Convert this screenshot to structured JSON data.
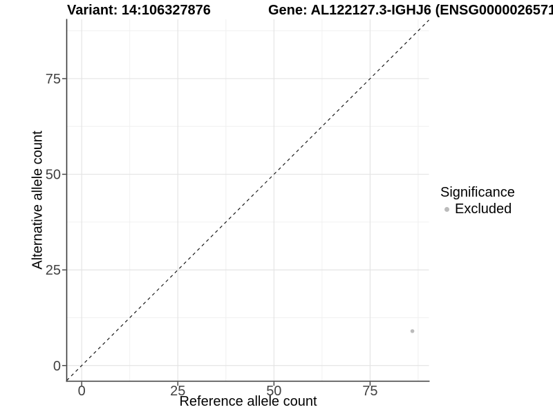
{
  "figure": {
    "title_variant": "Variant: 14:106327876",
    "title_gene": "Gene: AL122127.3-IGHJ6 (ENSG0000026571",
    "background": "#ffffff"
  },
  "chart_data": {
    "type": "scatter",
    "title": "Variant: 14:106327876   Gene: AL122127.3-IGHJ6 (ENSG0000026571",
    "xlabel": "Reference allele count",
    "ylabel": "Alternative allele count",
    "x_ticks": [
      0,
      25,
      50,
      75
    ],
    "y_ticks": [
      0,
      25,
      50,
      75
    ],
    "xlim": [
      -3.9,
      90.3
    ],
    "ylim": [
      -4.1,
      90.5
    ],
    "minor_tick_values": [
      12.5,
      37.5,
      62.5,
      87.5
    ],
    "grid": "major+minor",
    "identity_line": {
      "type": "abline",
      "slope": 1,
      "intercept": 0,
      "style": "dashed",
      "color": "#1a1a1a"
    },
    "series": [
      {
        "name": "Excluded",
        "color": "#bbbbbb",
        "points": [
          {
            "x": 86,
            "y": 9
          }
        ]
      }
    ],
    "legend": {
      "title": "Significance",
      "position": "right",
      "entries": [
        {
          "label": "Excluded",
          "color": "#bbbbbb"
        }
      ]
    }
  },
  "styles": {
    "axis_line_color": "#3a3a3a",
    "tick_label_color": "#404040",
    "grid_major_color": "#e4e4e4",
    "grid_minor_color": "#f0f0f0"
  }
}
